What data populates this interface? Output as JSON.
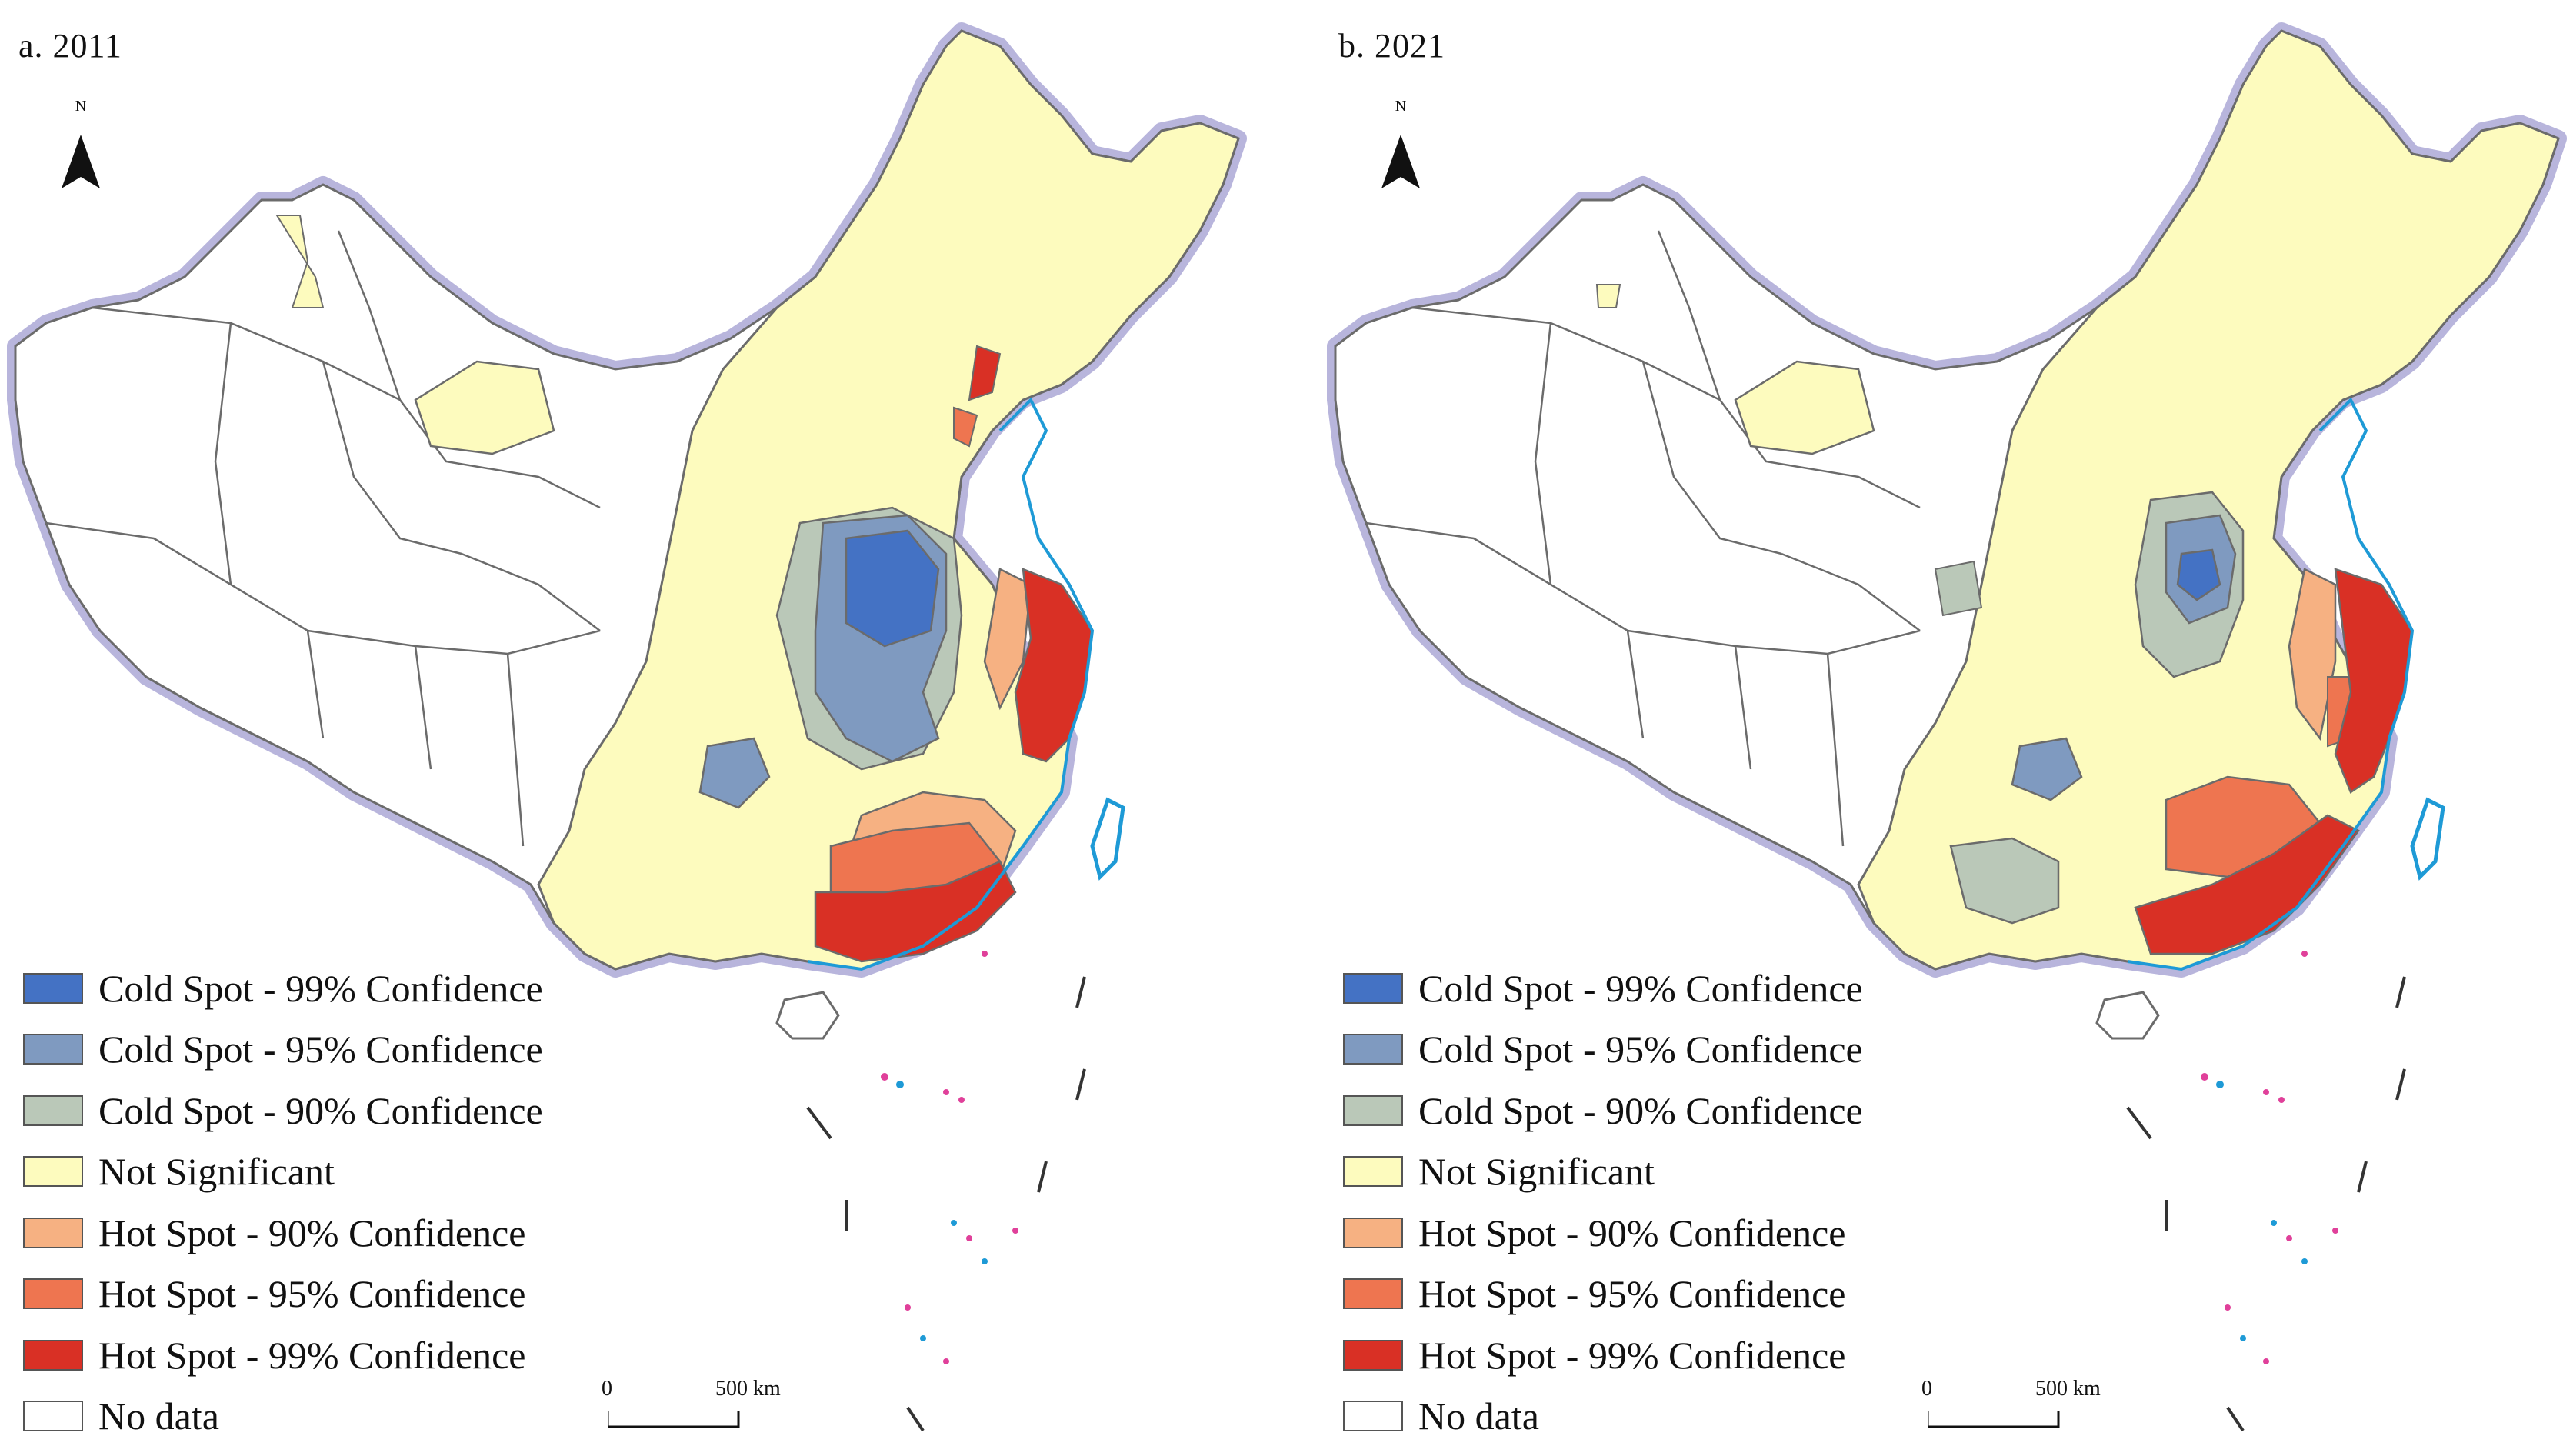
{
  "colors": {
    "cold99": "#4472c4",
    "cold95": "#7f9ac0",
    "cold90": "#bac8b8",
    "not_sig": "#fdfbbe",
    "hot90": "#f6b182",
    "hot95": "#ee7550",
    "hot99": "#d93025",
    "no_data": "#ffffff",
    "outline": "#6b6b6b",
    "glow": "#b8b5dc",
    "water": "#1e9ad6",
    "islands_pink": "#e0409a"
  },
  "panels": [
    {
      "id": "a",
      "title": "a. 2011"
    },
    {
      "id": "b",
      "title": "b. 2021"
    }
  ],
  "north_arrow": {
    "label": "N",
    "icon": "north-arrow-icon"
  },
  "scale_bar": {
    "zero": "0",
    "end": "500 km"
  },
  "legend": [
    {
      "key": "cold99",
      "label": "Cold Spot - 99% Confidence"
    },
    {
      "key": "cold95",
      "label": "Cold Spot - 95% Confidence"
    },
    {
      "key": "cold90",
      "label": "Cold Spot - 90% Confidence"
    },
    {
      "key": "not_sig",
      "label": "Not Significant"
    },
    {
      "key": "hot90",
      "label": "Hot Spot - 90% Confidence"
    },
    {
      "key": "hot95",
      "label": "Hot Spot - 95% Confidence"
    },
    {
      "key": "hot99",
      "label": "Hot Spot - 99% Confidence"
    },
    {
      "key": "no_data",
      "label": "No data"
    }
  ]
}
